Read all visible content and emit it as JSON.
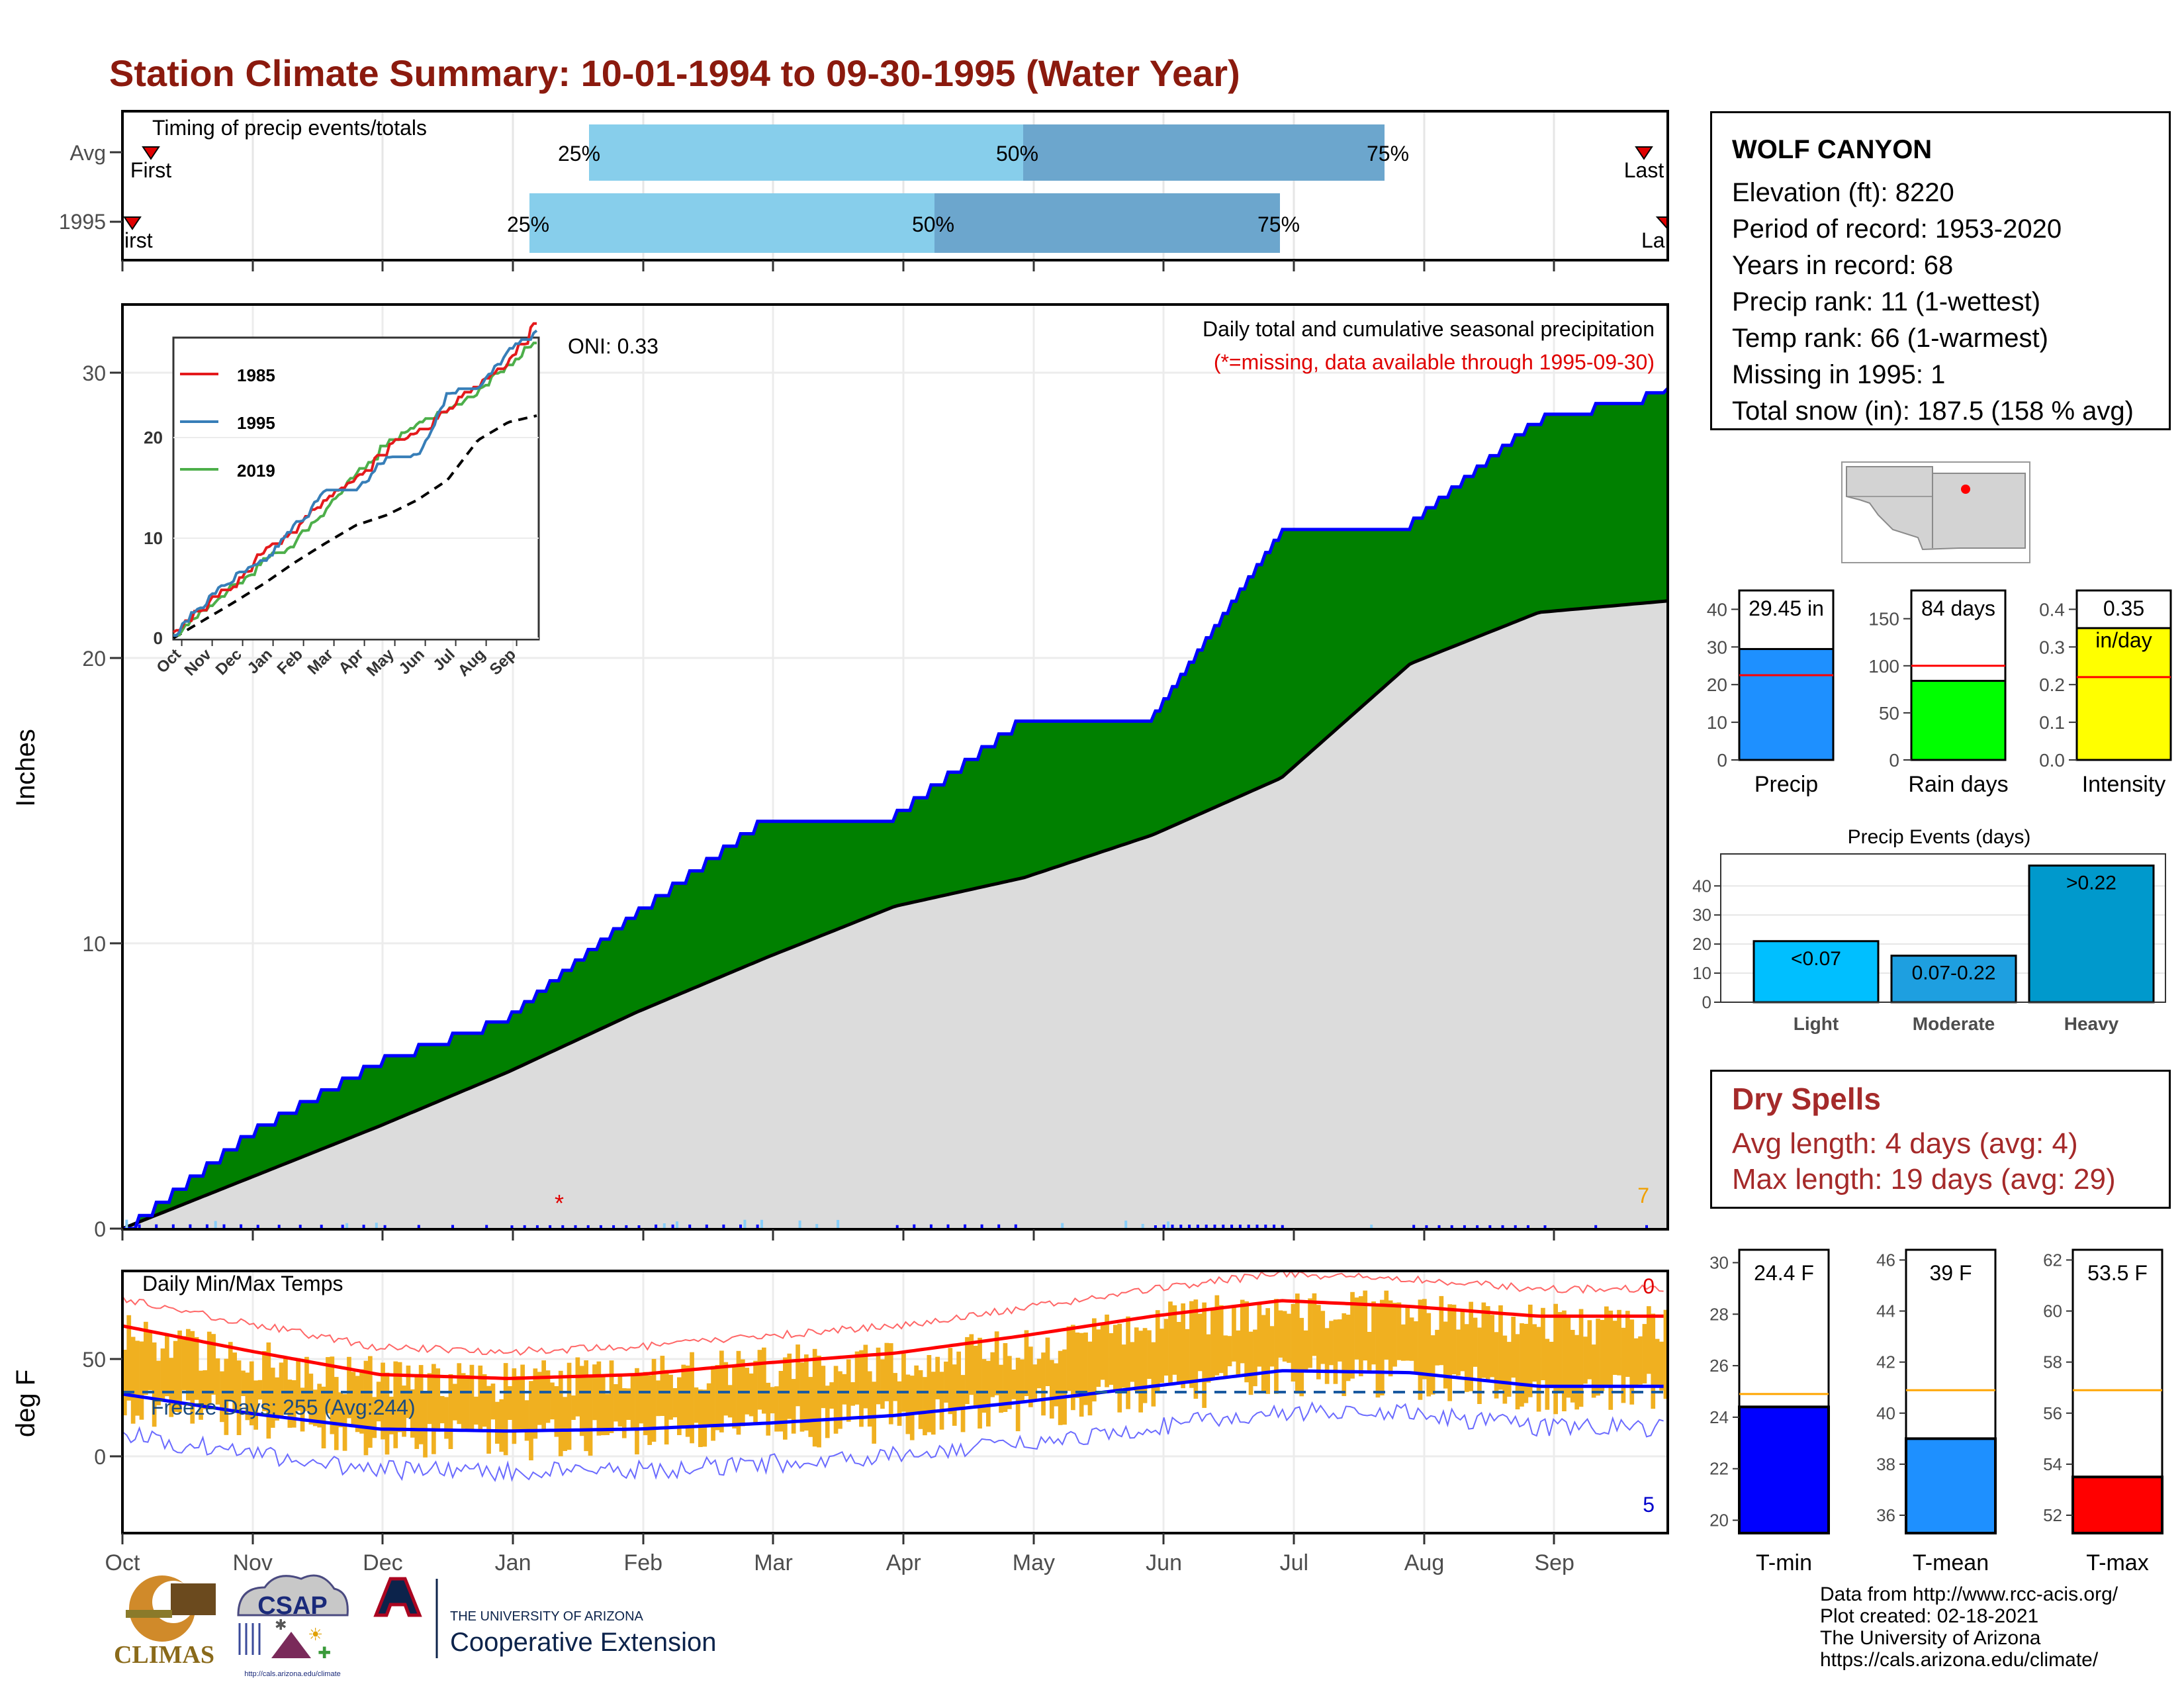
{
  "title": "Station Climate Summary: 10-01-1994 to 09-30-1995 (Water Year)",
  "timing_panel": {
    "label": "Timing of precip events/totals",
    "rows": [
      {
        "name": "Avg",
        "first_label": "First",
        "last_label": "Last",
        "p25": "25%",
        "p50": "50%",
        "p75": "75%"
      },
      {
        "name": "1995",
        "first_label": "irst",
        "last_label": "La",
        "p25": "25%",
        "p50": "50%",
        "p75": "75%"
      }
    ]
  },
  "precip_panel": {
    "ylabel": "Inches",
    "y_ticks": [
      "0",
      "10",
      "20",
      "30"
    ],
    "header": "Daily total and cumulative seasonal precipitation",
    "missing_note": "(*=missing, data available through 1995-09-30)",
    "oni": "ONI: 0.33",
    "count_label": "7",
    "missing_marker": "*"
  },
  "inset": {
    "y_ticks": [
      "0",
      "10",
      "20"
    ],
    "x_ticks": [
      "Oct",
      "Nov",
      "Dec",
      "Jan",
      "Feb",
      "Mar",
      "Apr",
      "May",
      "Jun",
      "Jul",
      "Aug",
      "Sep"
    ],
    "legend": [
      {
        "name": "1985",
        "color": "#e41a1c"
      },
      {
        "name": "1995",
        "color": "#377eb8"
      },
      {
        "name": "2019",
        "color": "#4daf4a"
      }
    ]
  },
  "temp_panel": {
    "ylabel": "deg F",
    "y_ticks": [
      "0",
      "50"
    ],
    "label": "Daily Min/Max Temps",
    "freeze_days": "Freeze Days: 255 (Avg:244)",
    "top_count": "0",
    "bottom_count": "5"
  },
  "x_months": [
    "Oct",
    "Nov",
    "Dec",
    "Jan",
    "Feb",
    "Mar",
    "Apr",
    "May",
    "Jun",
    "Jul",
    "Aug",
    "Sep"
  ],
  "station": {
    "name": "WOLF CANYON",
    "lines": [
      "Elevation (ft): 8220",
      "Period of record: 1953-2020",
      "Years in record: 68",
      "Precip rank: 11 (1-wettest)",
      "Temp rank: 66 (1-warmest)",
      "Missing in 1995: 1",
      "Total snow (in): 187.5 (158 % avg)"
    ]
  },
  "summary_bars": [
    {
      "label": "Precip",
      "value_text": "29.45 in",
      "value": 29.45,
      "avg": 22.5,
      "ymax": 45,
      "ticks": [
        "0",
        "10",
        "20",
        "30",
        "40"
      ],
      "color": "#1E90FF"
    },
    {
      "label": "Rain days",
      "value_text": "84 days",
      "value": 84,
      "avg": 100,
      "ymax": 180,
      "ticks": [
        "0",
        "50",
        "100",
        "150"
      ],
      "color": "#00FF00"
    },
    {
      "label": "Intensity",
      "value_text": "0.35",
      "value_text2": "in/day",
      "value": 0.35,
      "avg": 0.22,
      "ymax": 0.45,
      "ticks": [
        "0.0",
        "0.1",
        "0.2",
        "0.3",
        "0.4"
      ],
      "color": "#FFFF00"
    }
  ],
  "precip_events": {
    "title": "Precip Events (days)",
    "y_ticks": [
      "0",
      "10",
      "20",
      "30",
      "40"
    ],
    "bars": [
      {
        "category": "Light",
        "label": "<0.07",
        "value": 21,
        "color": "#00BFFF"
      },
      {
        "category": "Moderate",
        "label": "0.07-0.22",
        "value": 16,
        "color": "#1E9FE0"
      },
      {
        "category": "Heavy",
        "label": ">0.22",
        "value": 47,
        "color": "#0099CC"
      }
    ]
  },
  "dry_spells": {
    "title": "Dry Spells",
    "avg_length": "Avg length: 4 days (avg: 4)",
    "max_length": "Max length: 19 days (avg: 29)"
  },
  "temp_bars": [
    {
      "label": "T-min",
      "value_text": "24.4 F",
      "value": 24.4,
      "avg": 24.9,
      "ymin": 19.5,
      "ymax": 30.5,
      "ticks": [
        "20",
        "22",
        "24",
        "26",
        "28",
        "30"
      ],
      "tick_vals": [
        20,
        22,
        24,
        26,
        28,
        30
      ],
      "color": "#0000FF"
    },
    {
      "label": "T-mean",
      "value_text": "39 F",
      "value": 39,
      "avg": 40.9,
      "ymin": 35.3,
      "ymax": 46.4,
      "ticks": [
        "36",
        "38",
        "40",
        "42",
        "44",
        "46"
      ],
      "tick_vals": [
        36,
        38,
        40,
        42,
        44,
        46
      ],
      "color": "#1E90FF"
    },
    {
      "label": "T-max",
      "value_text": "53.5 F",
      "value": 53.5,
      "avg": 56.9,
      "ymin": 51.3,
      "ymax": 62.4,
      "ticks": [
        "52",
        "54",
        "56",
        "58",
        "60",
        "62"
      ],
      "tick_vals": [
        52,
        54,
        56,
        58,
        60,
        62
      ],
      "color": "#FF0000"
    }
  ],
  "logos": {
    "climas": "CLIMAS",
    "csap": "CSAP",
    "csap_url": "http://cals.arizona.edu/climate",
    "ua_small": "THE UNIVERSITY OF ARIZONA",
    "ua_big": "Cooperative Extension"
  },
  "footer": [
    "Data from http://www.rcc-acis.org/",
    "Plot created: 02-18-2021",
    "The University of Arizona",
    "https://cals.arizona.edu/climate/"
  ],
  "chart_data": [
    {
      "type": "area",
      "name": "cumulative precipitation",
      "units": "inches",
      "x": [
        "Oct",
        "Nov",
        "Dec",
        "Jan",
        "Feb",
        "Mar",
        "Apr",
        "May",
        "Jun",
        "Jul",
        "Aug",
        "Sep",
        "Sep 30"
      ],
      "cumulative_1995": [
        0.0,
        3.5,
        6.0,
        7.5,
        11.2,
        14.5,
        14.6,
        18.0,
        18.0,
        24.5,
        24.8,
        28.5,
        29.45
      ],
      "cumulative_avg": [
        0.0,
        1.8,
        3.6,
        5.5,
        7.6,
        9.5,
        11.3,
        12.3,
        13.8,
        15.8,
        19.8,
        21.6,
        22.0
      ],
      "ylim": [
        0,
        32
      ]
    },
    {
      "type": "bar",
      "name": "daily min/max temperatures",
      "units": "deg F",
      "x": [
        "Oct",
        "Nov",
        "Dec",
        "Jan",
        "Feb",
        "Mar",
        "Apr",
        "May",
        "Jun",
        "Jul",
        "Aug",
        "Sep"
      ],
      "tmax_avg": [
        67,
        54,
        42,
        40,
        42,
        48,
        53,
        62,
        72,
        80,
        77,
        72
      ],
      "tmin_avg": [
        32,
        22,
        14,
        13,
        14,
        17,
        21,
        28,
        36,
        44,
        43,
        36
      ],
      "tmax_obs_approx": [
        62,
        50,
        40,
        38,
        44,
        46,
        48,
        56,
        68,
        76,
        74,
        68
      ],
      "tmin_obs_approx": [
        28,
        20,
        10,
        8,
        12,
        14,
        18,
        24,
        32,
        42,
        40,
        32
      ],
      "ylim": [
        -25,
        85
      ]
    }
  ]
}
